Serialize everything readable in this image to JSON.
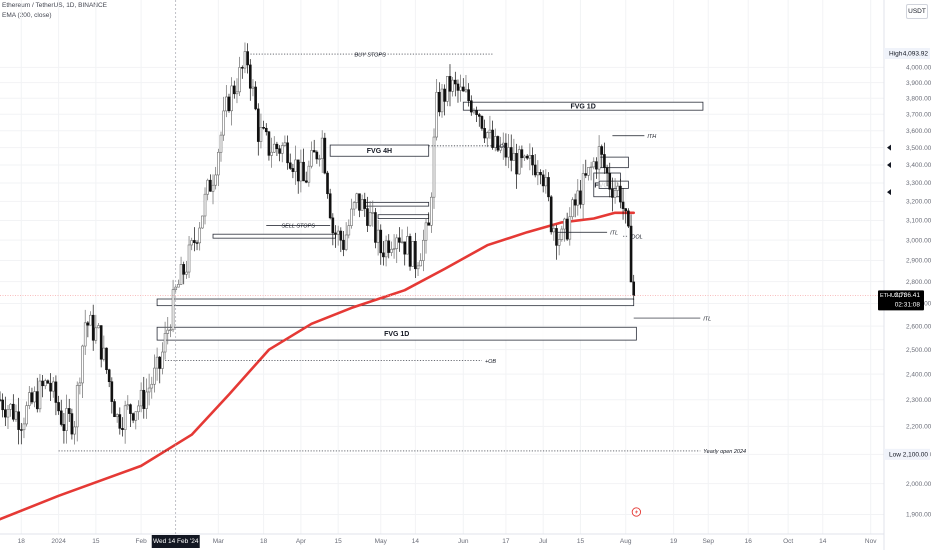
{
  "header": {
    "symbol_line": "Ethereum / TetherUS, 1D, BINANCE",
    "indicator_line": "EMA (200, close)"
  },
  "currency_button": "USDT",
  "colors": {
    "up": "#6b6b6b",
    "down": "#111111",
    "ema": "#e53935",
    "grid": "#f2f3f5",
    "axis_text": "#6a6d78",
    "last_price_line": "#f7a8a8"
  },
  "chart_data": {
    "type": "candlestick",
    "symbol": "ETHUSDT",
    "y_scale": "log",
    "ylim": [
      1870,
      4300
    ],
    "x_range": [
      "2023-12-10",
      "2024-11-06"
    ],
    "y_ticks": [
      1900,
      2000,
      2100,
      2200,
      2300,
      2400,
      2500,
      2600,
      2700,
      2800,
      2900,
      3000,
      3100,
      3200,
      3300,
      3400,
      3500,
      3600,
      3700,
      3800,
      3900,
      4000
    ],
    "x_ticks": [
      {
        "date": "2023-12-18",
        "label": "18"
      },
      {
        "date": "2024-01-01",
        "label": "2024"
      },
      {
        "date": "2024-01-15",
        "label": "15"
      },
      {
        "date": "2024-02-01",
        "label": "Feb"
      },
      {
        "date": "2024-03-01",
        "label": "Mar"
      },
      {
        "date": "2024-03-18",
        "label": "18"
      },
      {
        "date": "2024-04-01",
        "label": "Apr"
      },
      {
        "date": "2024-04-15",
        "label": "15"
      },
      {
        "date": "2024-05-01",
        "label": "May"
      },
      {
        "date": "2024-05-14",
        "label": "14"
      },
      {
        "date": "2024-06-01",
        "label": "Jun"
      },
      {
        "date": "2024-06-17",
        "label": "17"
      },
      {
        "date": "2024-07-01",
        "label": "Jul"
      },
      {
        "date": "2024-07-15",
        "label": "15"
      },
      {
        "date": "2024-08-01",
        "label": "Aug"
      },
      {
        "date": "2024-08-19",
        "label": "19"
      },
      {
        "date": "2024-09-01",
        "label": "Sep"
      },
      {
        "date": "2024-09-16",
        "label": "16"
      },
      {
        "date": "2024-10-01",
        "label": "Oct"
      },
      {
        "date": "2024-10-14",
        "label": "14"
      },
      {
        "date": "2024-11-01",
        "label": "Nov"
      }
    ],
    "crosshair": {
      "date": "2024-02-14",
      "label": "Wed 14 Feb '24"
    },
    "high": {
      "label": "High",
      "value_text": "4,093.92",
      "value": 4093.92
    },
    "low": {
      "label": "Low",
      "value_text": "2,100.00",
      "value": 2100
    },
    "last": {
      "symbol": "ETHUSDT",
      "value_text": "2,736.41",
      "value": 2736.41,
      "countdown": "02:31:08"
    },
    "candle_anchors": [
      [
        "2023-12-10",
        2300
      ],
      [
        "2023-12-18",
        2230
      ],
      [
        "2023-12-28",
        2370
      ],
      [
        "2024-01-03",
        2210
      ],
      [
        "2024-01-07",
        2230
      ],
      [
        "2024-01-11",
        2620
      ],
      [
        "2024-01-16",
        2560
      ],
      [
        "2024-01-23",
        2230
      ],
      [
        "2024-02-01",
        2290
      ],
      [
        "2024-02-08",
        2430
      ],
      [
        "2024-02-14",
        2750
      ],
      [
        "2024-02-20",
        2950
      ],
      [
        "2024-02-28",
        3350
      ],
      [
        "2024-03-05",
        3800
      ],
      [
        "2024-03-12",
        4050
      ],
      [
        "2024-03-16",
        3600
      ],
      [
        "2024-03-20",
        3500
      ],
      [
        "2024-03-27",
        3500
      ],
      [
        "2024-04-02",
        3300
      ],
      [
        "2024-04-09",
        3550
      ],
      [
        "2024-04-13",
        3050
      ],
      [
        "2024-04-17",
        2990
      ],
      [
        "2024-04-22",
        3200
      ],
      [
        "2024-04-26",
        3150
      ],
      [
        "2024-05-01",
        2950
      ],
      [
        "2024-05-07",
        3050
      ],
      [
        "2024-05-14",
        2900
      ],
      [
        "2024-05-19",
        3050
      ],
      [
        "2024-05-22",
        3750
      ],
      [
        "2024-05-27",
        3880
      ],
      [
        "2024-06-01",
        3810
      ],
      [
        "2024-06-06",
        3760
      ],
      [
        "2024-06-12",
        3500
      ],
      [
        "2024-06-17",
        3470
      ],
      [
        "2024-06-24",
        3380
      ],
      [
        "2024-06-30",
        3430
      ],
      [
        "2024-07-04",
        3100
      ],
      [
        "2024-07-08",
        3000
      ],
      [
        "2024-07-15",
        3250
      ],
      [
        "2024-07-22",
        3470
      ],
      [
        "2024-07-26",
        3300
      ],
      [
        "2024-07-30",
        3250
      ],
      [
        "2024-08-02",
        3000
      ],
      [
        "2024-08-04",
        2736
      ]
    ],
    "ema": {
      "name": "EMA (200, close)",
      "points": [
        [
          "2023-12-10",
          1885
        ],
        [
          "2024-01-01",
          1960
        ],
        [
          "2024-02-01",
          2060
        ],
        [
          "2024-02-20",
          2170
        ],
        [
          "2024-03-05",
          2320
        ],
        [
          "2024-03-20",
          2500
        ],
        [
          "2024-04-05",
          2610
        ],
        [
          "2024-04-20",
          2680
        ],
        [
          "2024-05-10",
          2760
        ],
        [
          "2024-05-25",
          2860
        ],
        [
          "2024-06-10",
          2975
        ],
        [
          "2024-06-25",
          3040
        ],
        [
          "2024-07-08",
          3090
        ],
        [
          "2024-07-20",
          3110
        ],
        [
          "2024-07-28",
          3140
        ],
        [
          "2024-08-04",
          3140
        ]
      ]
    },
    "zones": [
      {
        "label": "FVG 1D",
        "x1": "2024-06-01",
        "x2": "2024-08-30",
        "y_top": 3775,
        "y_bot": 3725
      },
      {
        "label": "FVG 4H",
        "x1": "2024-04-12",
        "x2": "2024-05-19",
        "y_top": 3515,
        "y_bot": 3450
      },
      {
        "label": "FVG 1D",
        "x1": "2024-07-20",
        "x2": "2024-07-30",
        "y_top": 3355,
        "y_bot": 3225
      },
      {
        "label": "FVG 1D",
        "x1": "2024-02-07",
        "x2": "2024-08-05",
        "y_top": 2595,
        "y_bot": 2540
      },
      {
        "label": "",
        "x1": "2024-02-07",
        "x2": "2024-08-04",
        "y_top": 2720,
        "y_bot": 2690
      },
      {
        "label": "",
        "x1": "2024-02-28",
        "x2": "2024-04-14",
        "y_top": 3030,
        "y_bot": 3010
      },
      {
        "label": "",
        "x1": "2024-04-24",
        "x2": "2024-05-19",
        "y_top": 3195,
        "y_bot": 3175
      },
      {
        "label": "",
        "x1": "2024-04-30",
        "x2": "2024-05-19",
        "y_top": 3130,
        "y_bot": 3110
      },
      {
        "label": "",
        "x1": "2024-07-22",
        "x2": "2024-08-02",
        "y_top": 3445,
        "y_bot": 3385
      },
      {
        "label": "",
        "x1": "2024-07-22",
        "x2": "2024-08-02",
        "y_top": 3310,
        "y_bot": 3270
      }
    ],
    "annotations": [
      {
        "label": "BUY STOPS",
        "x1": "2024-03-12",
        "x2": "2024-06-12",
        "y": 4090,
        "dotted": true
      },
      {
        "label": "SELL STOPS",
        "x1": "2024-03-19",
        "x2": "2024-04-12",
        "y": 3075,
        "dotted": false
      },
      {
        "label": "DOL",
        "x1": "2024-05-19",
        "x2": "2024-06-12",
        "y": 3510,
        "dotted": true
      },
      {
        "label": "ITH",
        "x1": "2024-07-27",
        "x2": "2024-08-08",
        "y": 3570,
        "dotted": false
      },
      {
        "label": "ITL",
        "x1": "2024-07-06",
        "x2": "2024-07-25",
        "y": 3040,
        "dotted": false
      },
      {
        "label": "DOL",
        "x1": "2024-07-31",
        "x2": "2024-08-02",
        "y": 3020,
        "dotted": true
      },
      {
        "label": "ITL",
        "x1": "2024-08-04",
        "x2": "2024-08-29",
        "y": 2635,
        "dotted": false
      },
      {
        "label": "+OB",
        "x1": "2024-02-10",
        "x2": "2024-06-08",
        "y": 2455,
        "dotted": true
      },
      {
        "label": "Yearly open 2024",
        "x1": "2024-01-01",
        "x2": "2024-08-29",
        "y": 2112,
        "dotted": true
      }
    ]
  }
}
